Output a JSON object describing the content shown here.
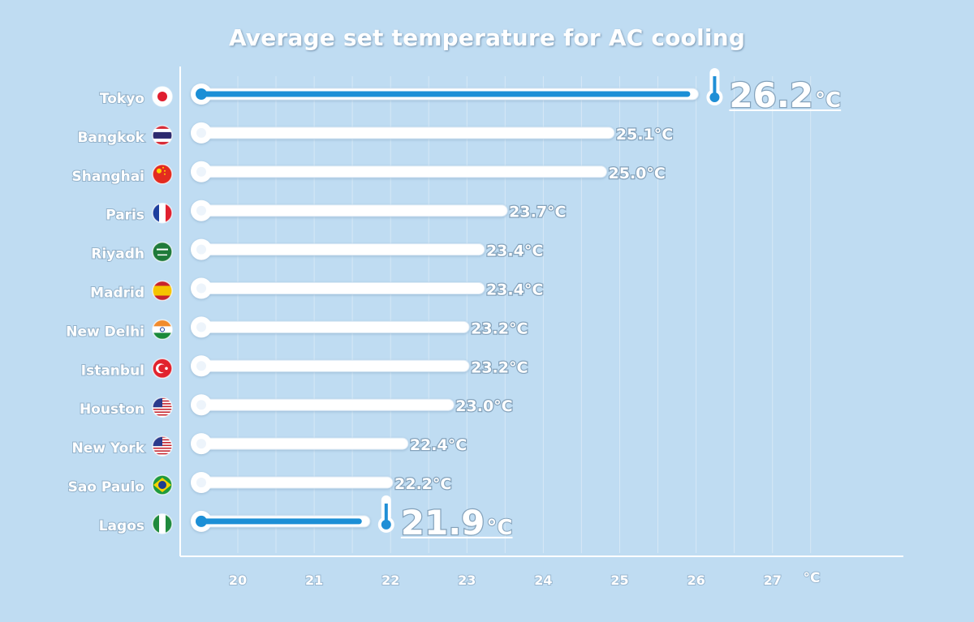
{
  "chart_data": {
    "type": "bar",
    "title": "Average set temperature for AC cooling",
    "x_unit": "°C",
    "xlim": [
      19.4,
      28.7
    ],
    "x_ticks": [
      20,
      21,
      22,
      23,
      24,
      25,
      26,
      27
    ],
    "grid": true,
    "value_suffix": "°C",
    "categories": [
      "Tokyo",
      "Bangkok",
      "Shanghai",
      "Paris",
      "Riyadh",
      "Madrid",
      "New Delhi",
      "Istanbul",
      "Houston",
      "New York",
      "Sao Paulo",
      "Lagos"
    ],
    "values": [
      26.2,
      25.1,
      25.0,
      23.7,
      23.4,
      23.4,
      23.2,
      23.2,
      23.0,
      22.4,
      22.2,
      21.9
    ],
    "value_labels": [
      "26.2",
      "25.1",
      "25.0",
      "23.7",
      "23.4",
      "23.4",
      "23.2",
      "23.2",
      "23.0",
      "22.4",
      "22.2",
      "21.9"
    ],
    "highlighted": [
      "Tokyo",
      "Lagos"
    ],
    "flag_icons": [
      "japan-flag-icon",
      "thailand-flag-icon",
      "china-flag-icon",
      "france-flag-icon",
      "saudi-arabia-flag-icon",
      "spain-flag-icon",
      "india-flag-icon",
      "turkey-flag-icon",
      "usa-flag-icon",
      "usa-flag-icon",
      "brazil-flag-icon",
      "nigeria-flag-icon"
    ],
    "colors": {
      "background": "#bfdcf2",
      "tube": "#ffffff",
      "tube_outline": "#dbe9f5",
      "mercury": "#1f8fd6",
      "highlight_bulb": "#1f8fd6"
    }
  }
}
